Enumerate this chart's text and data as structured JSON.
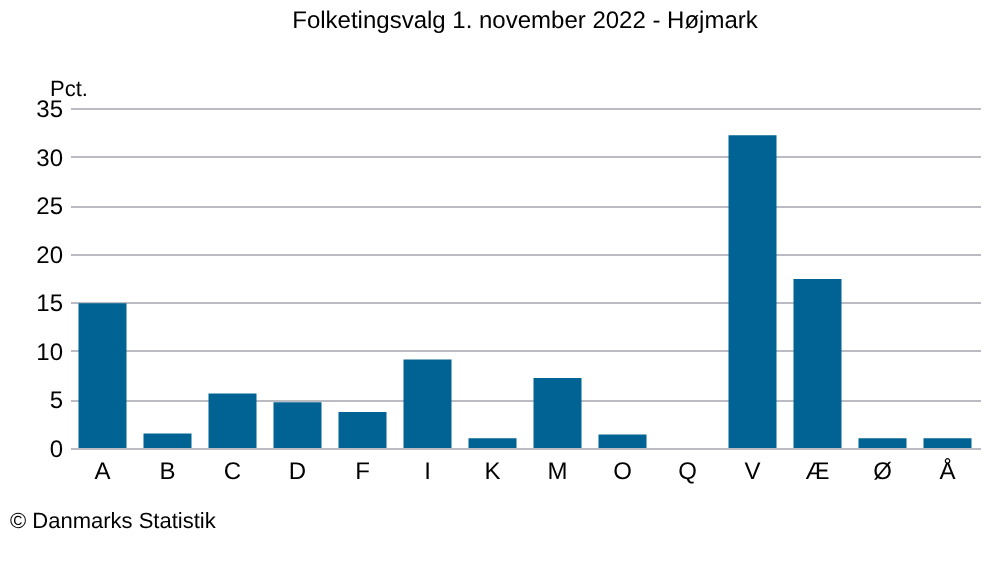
{
  "chart_data": {
    "type": "bar",
    "title": "Folketingsvalg 1. november 2022 - Højmark",
    "ylabel": "Pct.",
    "categories": [
      "A",
      "B",
      "C",
      "D",
      "F",
      "I",
      "K",
      "M",
      "O",
      "Q",
      "V",
      "Æ",
      "Ø",
      "Å"
    ],
    "values": [
      14.9,
      1.5,
      5.6,
      4.7,
      3.7,
      9.1,
      1.0,
      7.2,
      1.4,
      0,
      32.2,
      17.4,
      1.0,
      1.0
    ],
    "color": "#006393",
    "ylim": [
      0,
      35
    ],
    "yticks": [
      0,
      5,
      10,
      15,
      20,
      25,
      30,
      35
    ],
    "grid": "y",
    "annotations": [
      "© Danmarks Statistik"
    ]
  }
}
